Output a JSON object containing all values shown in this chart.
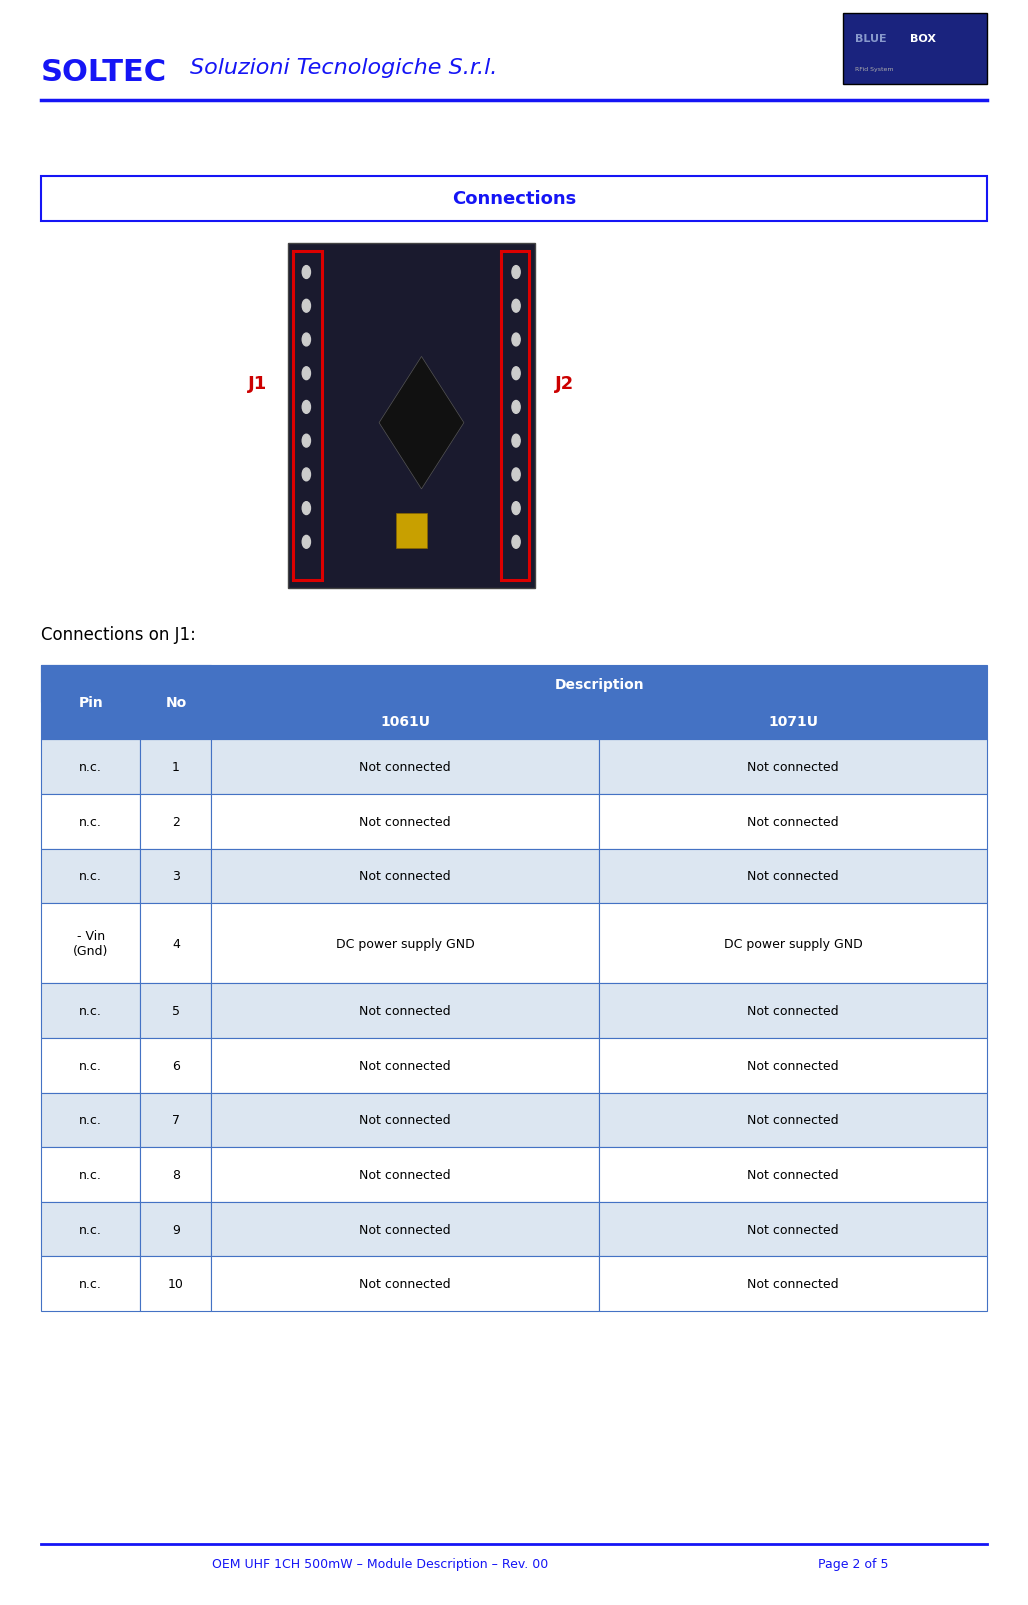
{
  "page_width": 10.28,
  "page_height": 16.06,
  "bg_color": "#ffffff",
  "header_soltec_text": "SOLTEC",
  "header_subtitle": "Soluzioni Tecnologiche S.r.l.",
  "header_blue": "#1515f5",
  "header_line_color": "#1515f5",
  "bluebox_bg": "#1a237e",
  "section_title": "Connections",
  "section_title_color": "#1515f5",
  "section_border_color": "#1515f5",
  "j1_label": "J1",
  "j2_label": "J2",
  "j_label_color": "#cc0000",
  "connections_on_j1": "Connections on J1:",
  "connections_text_color": "#000000",
  "table_header_bg": "#4472c4",
  "table_header_text_color": "#ffffff",
  "table_odd_bg": "#dce6f1",
  "table_even_bg": "#ffffff",
  "table_border_color": "#4472c4",
  "table_col1_header": "Pin",
  "table_col2_header": "No",
  "table_col3_header": "Description",
  "table_col3a_header": "1061U",
  "table_col3b_header": "1071U",
  "table_rows": [
    {
      "pin": "n.c.",
      "no": "1",
      "desc1061": "Not connected",
      "desc1071": "Not connected"
    },
    {
      "pin": "n.c.",
      "no": "2",
      "desc1061": "Not connected",
      "desc1071": "Not connected"
    },
    {
      "pin": "n.c.",
      "no": "3",
      "desc1061": "Not connected",
      "desc1071": "Not connected"
    },
    {
      "pin": "- Vin\n(Gnd)",
      "no": "4",
      "desc1061": "DC power supply GND",
      "desc1071": "DC power supply GND"
    },
    {
      "pin": "n.c.",
      "no": "5",
      "desc1061": "Not connected",
      "desc1071": "Not connected"
    },
    {
      "pin": "n.c.",
      "no": "6",
      "desc1061": "Not connected",
      "desc1071": "Not connected"
    },
    {
      "pin": "n.c.",
      "no": "7",
      "desc1061": "Not connected",
      "desc1071": "Not connected"
    },
    {
      "pin": "n.c.",
      "no": "8",
      "desc1061": "Not connected",
      "desc1071": "Not connected"
    },
    {
      "pin": "n.c.",
      "no": "9",
      "desc1061": "Not connected",
      "desc1071": "Not connected"
    },
    {
      "pin": "n.c.",
      "no": "10",
      "desc1061": "Not connected",
      "desc1071": "Not connected"
    }
  ],
  "footer_line_color": "#1515f5",
  "footer_text": "OEM UHF 1CH 500mW – Module Description – Rev. 00",
  "footer_page": "Page 2 of 5",
  "footer_color": "#1515f5"
}
